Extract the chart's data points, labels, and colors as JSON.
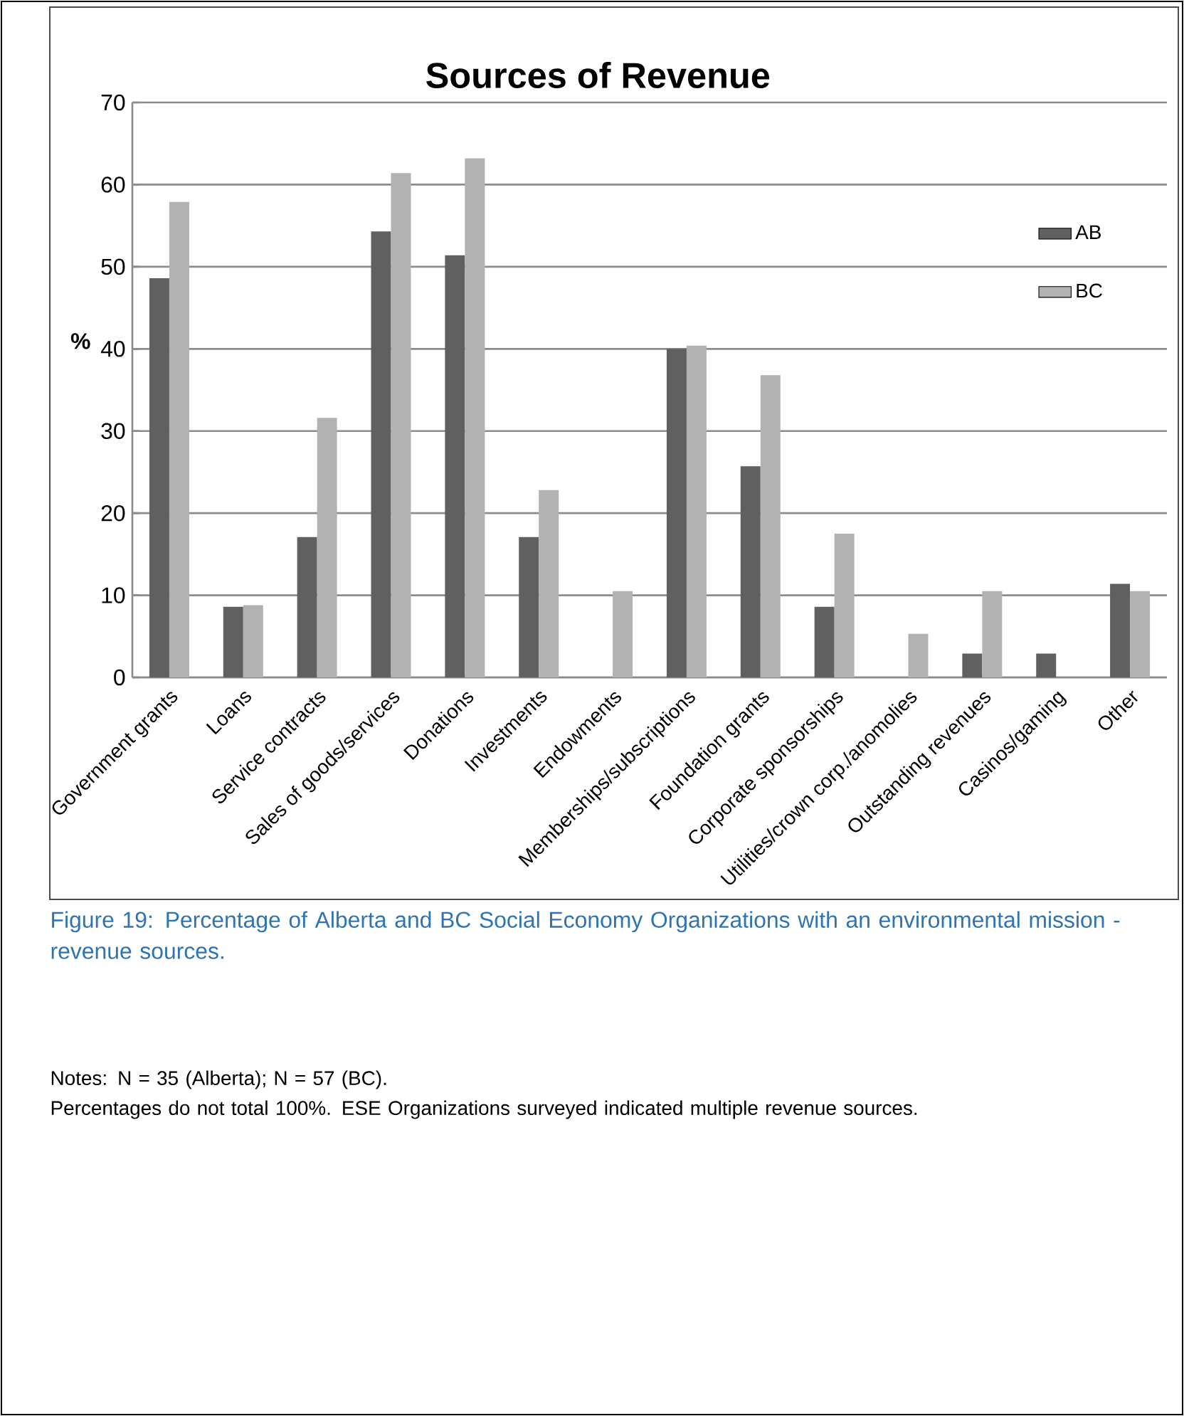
{
  "chart_data": {
    "type": "bar",
    "title": "Sources of Revenue",
    "ylabel": "%",
    "categories": [
      "Government grants",
      "Loans",
      "Service contracts",
      "Sales of goods/services",
      "Donations",
      "Investments",
      "Endowments",
      "Memberships/subscriptions",
      "Foundation grants",
      "Corporate sponsorships",
      "Utilities/crown corp./anomolies",
      "Outstanding revenues",
      "Casinos/gaming",
      "Other"
    ],
    "series": [
      {
        "name": "AB",
        "color": "#606060",
        "values": [
          48.6,
          8.6,
          17.1,
          54.3,
          51.4,
          17.1,
          0,
          40.0,
          25.7,
          8.6,
          0,
          2.9,
          2.9,
          11.4
        ]
      },
      {
        "name": "BC",
        "color": "#b2b2b2",
        "values": [
          57.9,
          8.8,
          31.6,
          61.4,
          63.2,
          22.8,
          10.5,
          40.4,
          36.8,
          17.5,
          5.3,
          10.5,
          0,
          10.5
        ]
      }
    ],
    "ylim": [
      0,
      70
    ],
    "yticks": [
      0,
      10,
      20,
      30,
      40,
      50,
      60,
      70
    ],
    "grid": "y",
    "legend": "right",
    "annotations": [
      "Figure 19: Percentage of Alberta and BC Social Economy Organizations with an environmental mission - revenue sources.",
      "Notes: N = 35 (Alberta); N = 57 (BC).",
      "Percentages do not total 100%. ESE Organizations surveyed indicated multiple revenue sources."
    ]
  }
}
